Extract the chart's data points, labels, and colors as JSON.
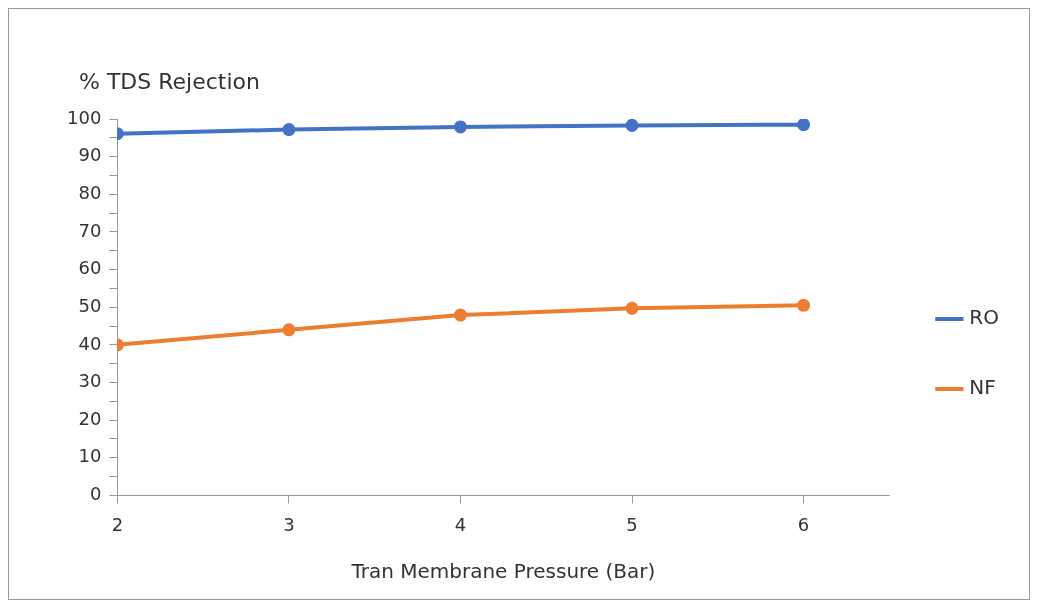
{
  "chart_data": {
    "type": "line",
    "ylabel": "% TDS Rejection",
    "xlabel": "Tran Membrane Pressure (Bar)",
    "x": [
      2,
      3,
      4,
      5,
      6
    ],
    "series": [
      {
        "name": "RO",
        "color": "#4472c4",
        "values": [
          96.1,
          97.2,
          97.9,
          98.3,
          98.5
        ]
      },
      {
        "name": "NF",
        "color": "#ed7d31",
        "values": [
          40,
          44,
          47.9,
          49.7,
          50.5
        ]
      }
    ],
    "xlim": [
      2,
      6.5
    ],
    "xticks": [
      2,
      3,
      4,
      5,
      6
    ],
    "ylim": [
      0,
      100
    ],
    "yticks": [
      0,
      {
        "value": 5,
        "label": null
      },
      10,
      {
        "value": 15,
        "label": null
      },
      20,
      {
        "value": 25,
        "label": null
      },
      30,
      {
        "value": 35,
        "label": null
      },
      40,
      {
        "value": 45,
        "label": null
      },
      50,
      {
        "value": 55,
        "label": null
      },
      60,
      {
        "value": 65,
        "label": null
      },
      70,
      {
        "value": 75,
        "label": null
      },
      80,
      {
        "value": 85,
        "label": null
      },
      90,
      {
        "value": 95,
        "label": null
      },
      100
    ],
    "grid": false,
    "legend": "right",
    "marker": "circle",
    "line_style": "solid"
  }
}
